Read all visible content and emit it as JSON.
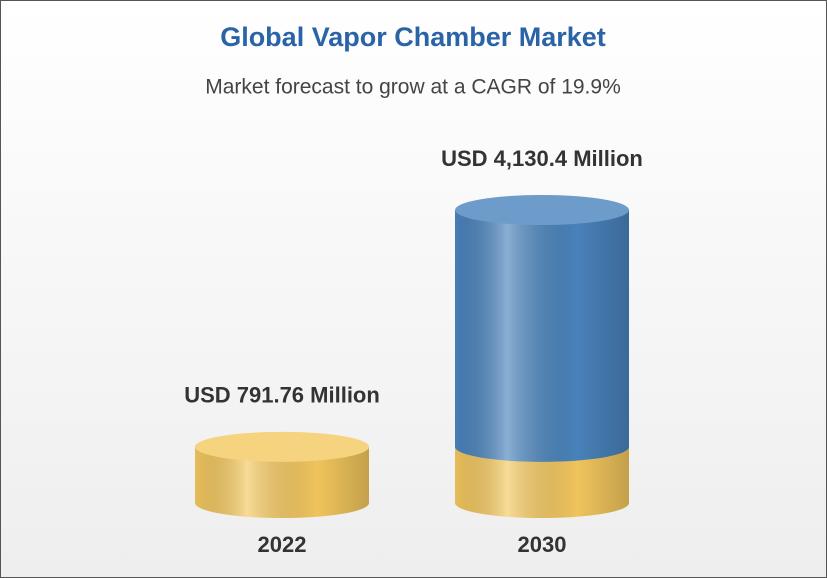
{
  "chart_data": {
    "type": "cylinder",
    "title": "Global Vapor Chamber Market",
    "subtitle": "Market forecast to grow at a CAGR of 19.9%",
    "categories": [
      "2022",
      "2030"
    ],
    "values": [
      791.76,
      4130.4
    ],
    "value_labels": [
      "USD 791.76 Million",
      "USD 4,130.4 Million"
    ],
    "colors": [
      "#f4c85e",
      "#4a84bd"
    ]
  }
}
